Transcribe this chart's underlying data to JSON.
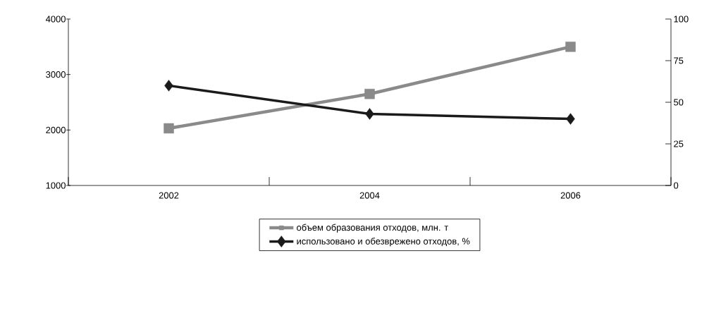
{
  "chart_data": {
    "type": "line",
    "categories": [
      "2002",
      "2004",
      "2006"
    ],
    "series": [
      {
        "name": "объем образования отходов, млн. т",
        "color": "#8a8a8a",
        "values": [
          2030,
          2650,
          3500
        ],
        "marker": "square"
      },
      {
        "name": "использовано и обезврежено отходов, %",
        "color": "#1a1a1a",
        "values": [
          60,
          43,
          40
        ],
        "axis": "y2",
        "marker": "diamond"
      }
    ],
    "ylim": [
      1000,
      4000
    ],
    "yticks": [
      1000,
      2000,
      3000,
      4000
    ],
    "y2lim": [
      0,
      100
    ],
    "y2ticks": [
      0,
      25,
      50,
      75,
      100
    ],
    "grid": false,
    "legend": "bottom",
    "line_style": "solid"
  }
}
